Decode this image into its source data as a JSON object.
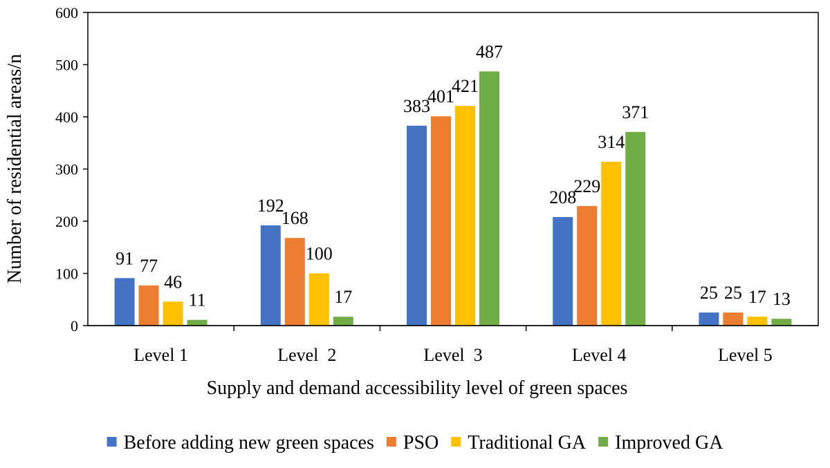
{
  "chart_data": {
    "type": "bar",
    "title": "",
    "xlabel": "Supply and demand accessibility level of green spaces",
    "ylabel": "Number of residential areas/n",
    "ylim": [
      0,
      600
    ],
    "yticks": [
      0,
      100,
      200,
      300,
      400,
      500,
      600
    ],
    "grid": false,
    "legend_position": "bottom",
    "categories": [
      "Level 1",
      "Level  2",
      "Level  3",
      "Level 4",
      "Level 5"
    ],
    "series": [
      {
        "name": "Before adding new green spaces",
        "color": "#4472C4",
        "values": [
          91,
          192,
          383,
          208,
          25
        ]
      },
      {
        "name": "PSO",
        "color": "#ED7D31",
        "values": [
          77,
          168,
          401,
          229,
          25
        ]
      },
      {
        "name": "Traditional GA",
        "color": "#FFC000",
        "values": [
          46,
          100,
          421,
          314,
          17
        ]
      },
      {
        "name": "Improved GA",
        "color": "#70AD47",
        "values": [
          11,
          17,
          487,
          371,
          13
        ]
      }
    ]
  }
}
